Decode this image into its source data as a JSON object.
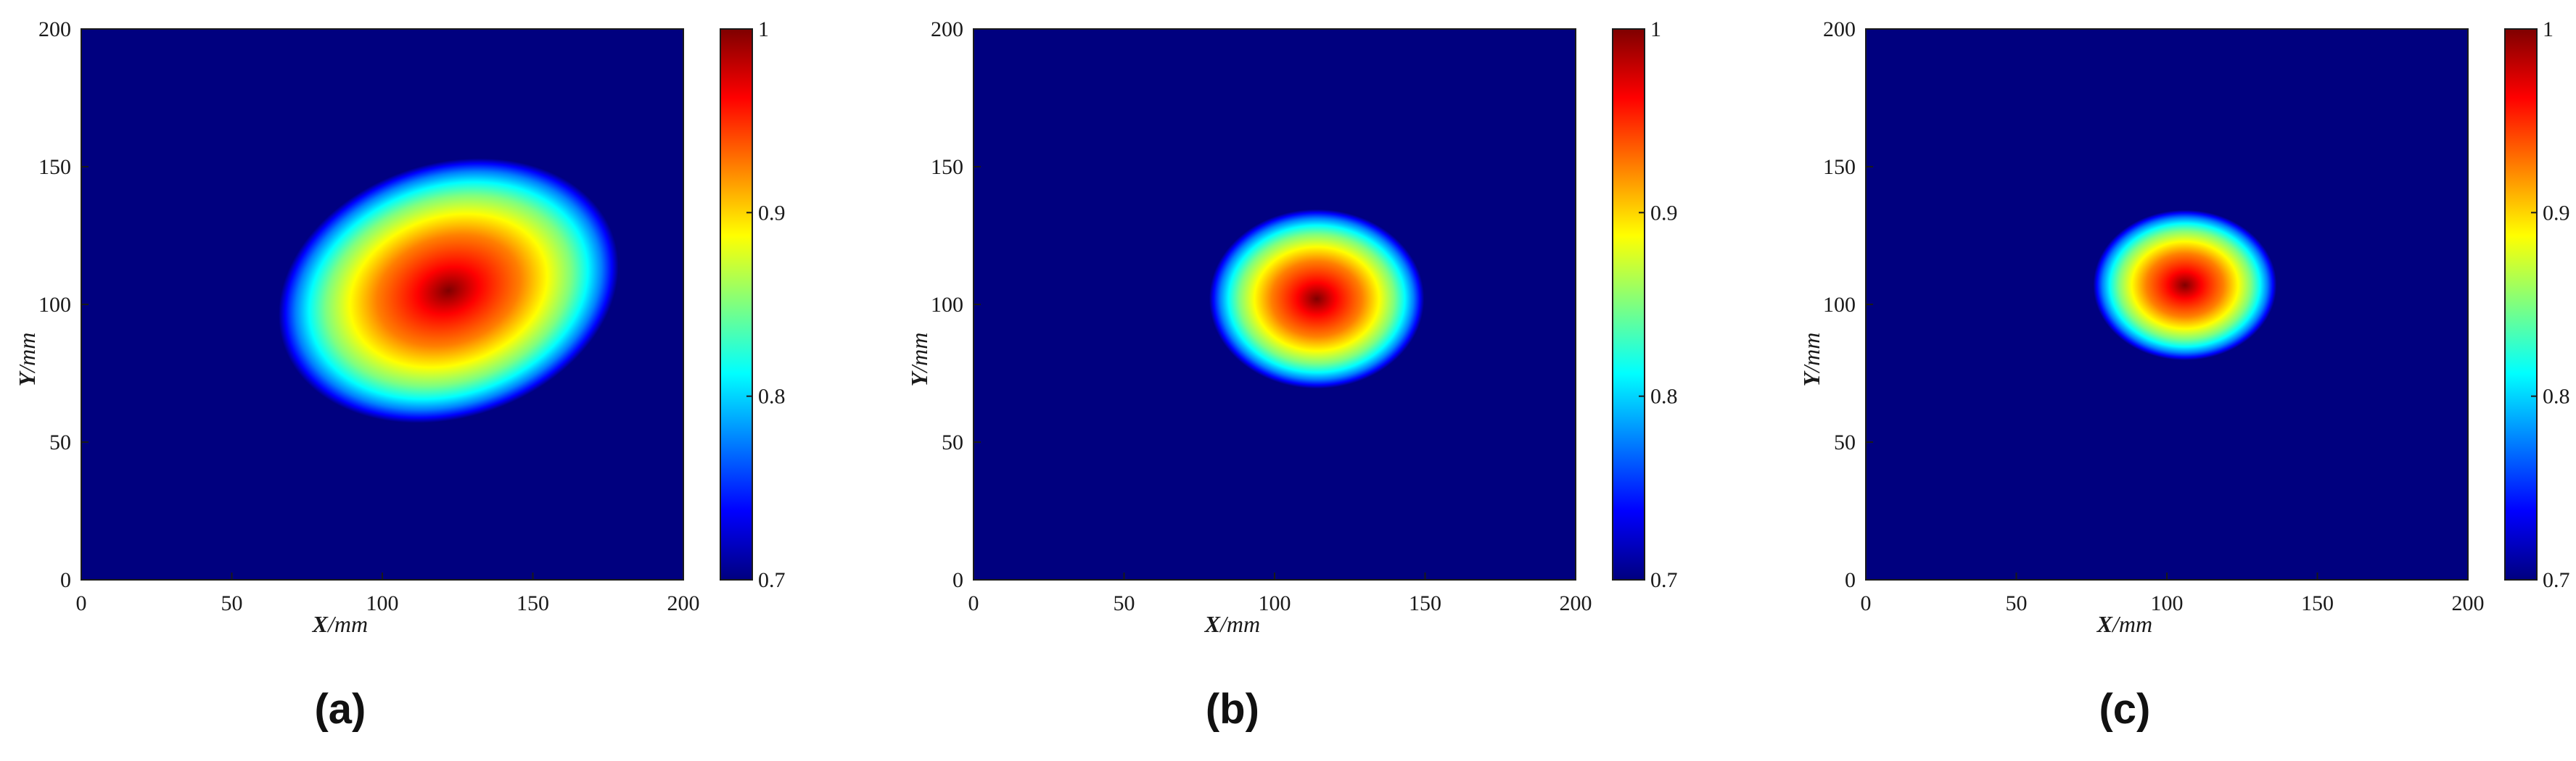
{
  "colormap": "jet",
  "colors": {
    "jet": [
      "#00007f",
      "#0000ff",
      "#007fff",
      "#00ffff",
      "#7fff7f",
      "#ffff00",
      "#ff7f00",
      "#ff0000",
      "#7f0000"
    ],
    "axis": "#1a1a1a"
  },
  "chart_data": [
    {
      "type": "heatmap",
      "panel_label": "(a)",
      "xlabel": {
        "var": "X",
        "unit": "/mm"
      },
      "ylabel": {
        "var": "Y",
        "unit": "/mm"
      },
      "xlim": [
        0,
        200
      ],
      "ylim": [
        0,
        200
      ],
      "xticks": [
        "0",
        "50",
        "100",
        "150",
        "200"
      ],
      "yticks": [
        "0",
        "50",
        "100",
        "150",
        "200"
      ],
      "clim": [
        0.7,
        1
      ],
      "cticks": [
        "0.7",
        "0.8",
        "0.9",
        "1"
      ],
      "background_value": 0.7,
      "peak": {
        "x": 122,
        "y": 105,
        "value": 1.0
      },
      "contour_0_75": {
        "rx": 55,
        "ry": 44,
        "skew_up_right": true
      },
      "grid": false,
      "colorbar": "right"
    },
    {
      "type": "heatmap",
      "panel_label": "(b)",
      "xlabel": {
        "var": "X",
        "unit": "/mm"
      },
      "ylabel": {
        "var": "Y",
        "unit": "/mm"
      },
      "xlim": [
        0,
        200
      ],
      "ylim": [
        0,
        200
      ],
      "xticks": [
        "0",
        "50",
        "100",
        "150",
        "200"
      ],
      "yticks": [
        "0",
        "50",
        "100",
        "150",
        "200"
      ],
      "clim": [
        0.7,
        1
      ],
      "cticks": [
        "0.7",
        "0.8",
        "0.9",
        "1"
      ],
      "background_value": 0.7,
      "peak": {
        "x": 114,
        "y": 102,
        "value": 1.0
      },
      "contour_0_75": {
        "rx": 34,
        "ry": 31,
        "skew_up_right": false
      },
      "grid": false,
      "colorbar": "right"
    },
    {
      "type": "heatmap",
      "panel_label": "(c)",
      "xlabel": {
        "var": "X",
        "unit": "/mm"
      },
      "ylabel": {
        "var": "Y",
        "unit": "/mm"
      },
      "xlim": [
        0,
        200
      ],
      "ylim": [
        0,
        200
      ],
      "xticks": [
        "0",
        "50",
        "100",
        "150",
        "200"
      ],
      "yticks": [
        "0",
        "50",
        "100",
        "150",
        "200"
      ],
      "clim": [
        0.7,
        1
      ],
      "cticks": [
        "0.7",
        "0.8",
        "0.9",
        "1"
      ],
      "background_value": 0.7,
      "peak": {
        "x": 106,
        "y": 107,
        "value": 1.0
      },
      "contour_0_75": {
        "rx": 29,
        "ry": 26,
        "skew_up_right": false
      },
      "grid": false,
      "colorbar": "right"
    }
  ]
}
